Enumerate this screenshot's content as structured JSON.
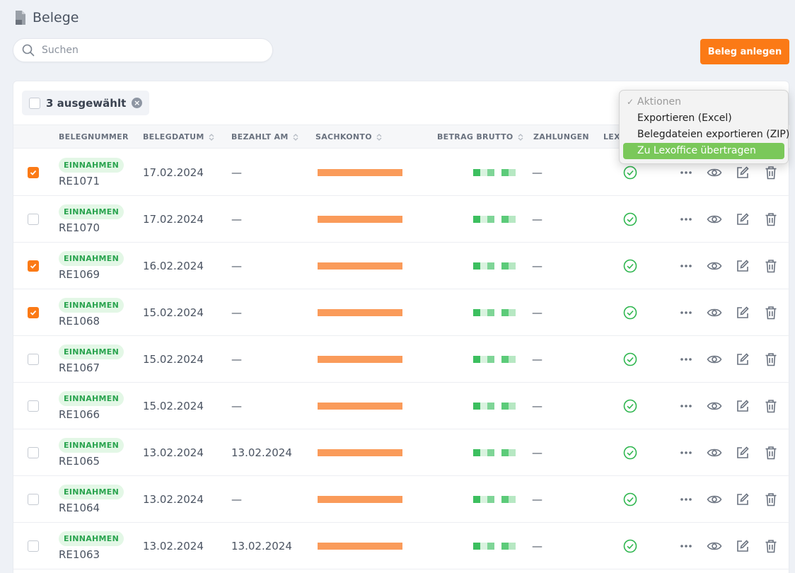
{
  "page": {
    "title": "Belege",
    "icon": "document-icon"
  },
  "search": {
    "placeholder": "Suchen",
    "value": ""
  },
  "create_button": {
    "label": "Beleg anlegen",
    "color": "#fb7a16"
  },
  "selection": {
    "label": "3 ausgewählt",
    "clear_icon": "x-circle-icon"
  },
  "table": {
    "columns": [
      {
        "label": "BELEGNUMMER",
        "sortable": false
      },
      {
        "label": "BELEGDATUM",
        "sortable": true
      },
      {
        "label": "BEZAHLT AM",
        "sortable": true
      },
      {
        "label": "SACHKONTO",
        "sortable": true
      },
      {
        "label": "BETRAG BRUTTO",
        "sortable": true
      },
      {
        "label": "ZAHLUNGEN",
        "sortable": false
      },
      {
        "label": "LEX",
        "sortable": false
      }
    ],
    "rows": [
      {
        "checked": true,
        "type": "EINNAHMEN",
        "number": "RE1071",
        "date": "17.02.2024",
        "paid": "—",
        "payments": "—"
      },
      {
        "checked": false,
        "type": "EINNAHMEN",
        "number": "RE1070",
        "date": "17.02.2024",
        "paid": "—",
        "payments": "—"
      },
      {
        "checked": true,
        "type": "EINNAHMEN",
        "number": "RE1069",
        "date": "16.02.2024",
        "paid": "—",
        "payments": "—"
      },
      {
        "checked": true,
        "type": "EINNAHMEN",
        "number": "RE1068",
        "date": "15.02.2024",
        "paid": "—",
        "payments": "—"
      },
      {
        "checked": false,
        "type": "EINNAHMEN",
        "number": "RE1067",
        "date": "15.02.2024",
        "paid": "—",
        "payments": "—"
      },
      {
        "checked": false,
        "type": "EINNAHMEN",
        "number": "RE1066",
        "date": "15.02.2024",
        "paid": "—",
        "payments": "—"
      },
      {
        "checked": false,
        "type": "EINNAHMEN",
        "number": "RE1065",
        "date": "13.02.2024",
        "paid": "13.02.2024",
        "payments": "—"
      },
      {
        "checked": false,
        "type": "EINNAHMEN",
        "number": "RE1064",
        "date": "13.02.2024",
        "paid": "—",
        "payments": "—"
      },
      {
        "checked": false,
        "type": "EINNAHMEN",
        "number": "RE1063",
        "date": "13.02.2024",
        "paid": "13.02.2024",
        "payments": "—"
      }
    ],
    "row_icons": [
      "check-circle-icon",
      "more-icon",
      "eye-icon",
      "edit-icon",
      "trash-icon"
    ]
  },
  "actions_menu": {
    "items": [
      {
        "label": "Aktionen",
        "checked": true,
        "disabled": true
      },
      {
        "label": "Exportieren (Excel)"
      },
      {
        "label": "Belegdateien exportieren (ZIP)"
      },
      {
        "label": "Zu Lexoffice übertragen",
        "highlighted": true
      }
    ]
  },
  "colors": {
    "accent": "#fb7a16",
    "success": "#2aa44f",
    "badge_bg": "#e3f7e6",
    "highlight": "#7ac85a"
  }
}
